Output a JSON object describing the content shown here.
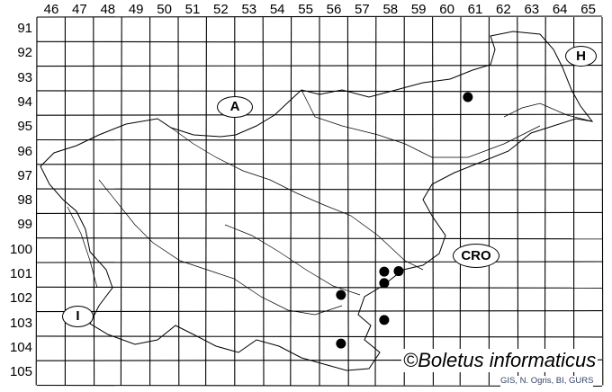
{
  "map": {
    "columns": [
      "46",
      "47",
      "48",
      "49",
      "50",
      "51",
      "52",
      "53",
      "54",
      "55",
      "56",
      "57",
      "58",
      "59",
      "60",
      "61",
      "62",
      "63",
      "64",
      "65"
    ],
    "rows": [
      "91",
      "92",
      "93",
      "94",
      "95",
      "96",
      "97",
      "98",
      "99",
      "100",
      "101",
      "102",
      "103",
      "104",
      "105"
    ],
    "countries": [
      {
        "code": "A"
      },
      {
        "code": "H"
      },
      {
        "code": "CRO"
      },
      {
        "code": "I"
      }
    ],
    "records": [
      {
        "col": 60.75,
        "row": 93.76
      },
      {
        "col": 57.79,
        "row": 100.87
      },
      {
        "col": 58.3,
        "row": 100.85
      },
      {
        "col": 57.79,
        "row": 101.34
      },
      {
        "col": 56.26,
        "row": 101.82
      },
      {
        "col": 57.79,
        "row": 102.84
      },
      {
        "col": 56.26,
        "row": 103.8
      }
    ],
    "record_color": "#000000"
  },
  "copyright": "©Boletus informaticus",
  "credits": "GIS, N. Ogris, BI, GURS"
}
